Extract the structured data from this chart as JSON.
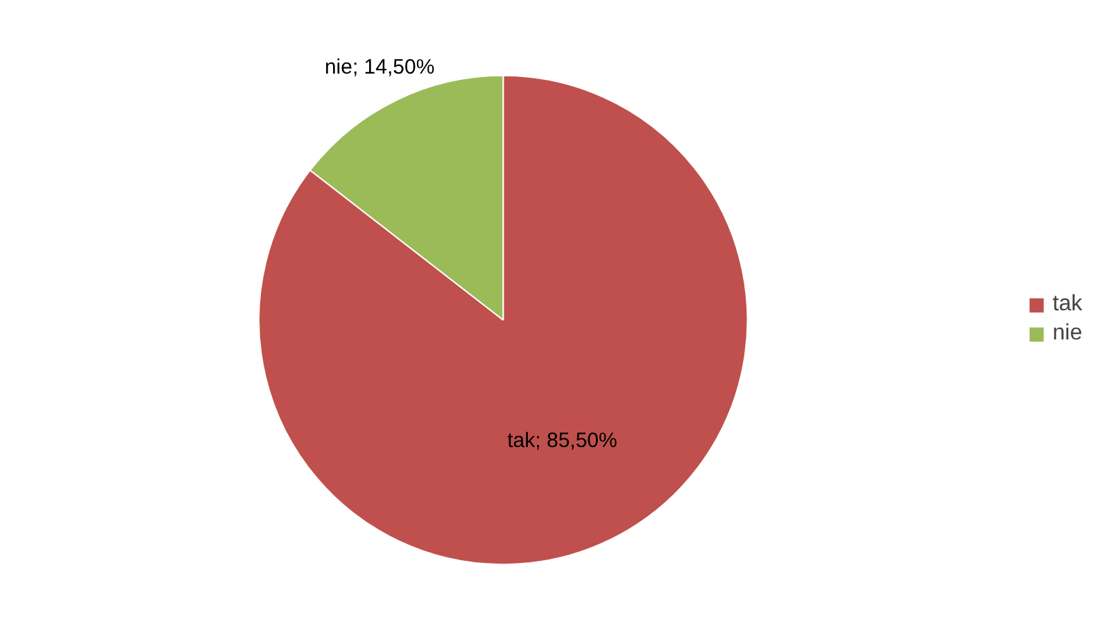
{
  "chart_data": {
    "type": "pie",
    "categories": [
      "tak",
      "nie"
    ],
    "values": [
      85.5,
      14.5
    ],
    "colors": [
      "#c0504d",
      "#9bbb59"
    ],
    "value_labels": [
      "tak; 85,50%",
      "nie; 14,50%"
    ],
    "legend": "right"
  }
}
